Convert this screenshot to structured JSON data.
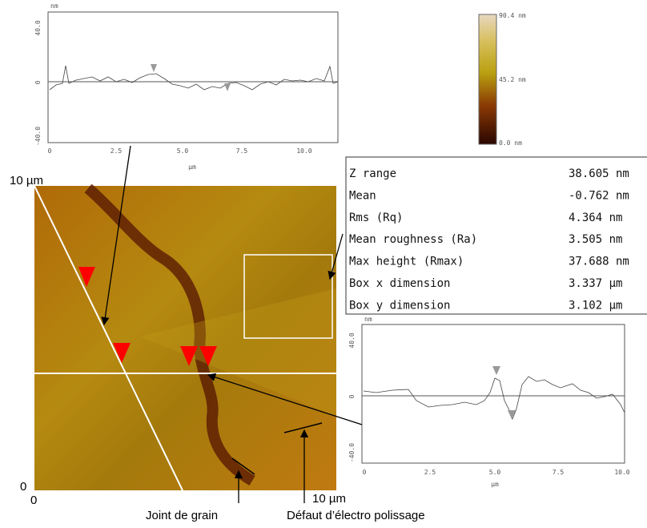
{
  "top_profile": {
    "y_unit": "nm",
    "yticks": [
      "40.0",
      "0",
      "-40.0"
    ],
    "xticks": [
      "0",
      "2.5",
      "5.0",
      "7.5",
      "10.0"
    ],
    "x_label": "μm"
  },
  "colorbar": {
    "labels": [
      "90.4 nm",
      "45.2 nm",
      "0.0 nm"
    ]
  },
  "stats_table": {
    "rows": [
      [
        "Z range",
        "38.605 nm"
      ],
      [
        "Mean",
        "-0.762 nm"
      ],
      [
        "Rms (Rq)",
        "4.364 nm"
      ],
      [
        "Mean roughness (Ra)",
        "3.505 nm"
      ],
      [
        "Max height (Rmax)",
        "37.688 nm"
      ],
      [
        "Box x dimension",
        "3.337 µm"
      ],
      [
        "Box y dimension",
        "3.102 µm"
      ]
    ]
  },
  "bottom_profile": {
    "y_unit": "nm",
    "yticks": [
      "40.0",
      "0",
      "-40.0"
    ],
    "xticks": [
      "0",
      "2.5",
      "5.0",
      "7.5",
      "10.0"
    ],
    "x_label": "μm"
  },
  "image": {
    "y_max_label": "10 µm",
    "y_min_label": "0",
    "x_min_label": "0",
    "x_max_label": "10 µm"
  },
  "annotations": [
    "Joint de grain",
    "Défaut d’électro polissage"
  ]
}
